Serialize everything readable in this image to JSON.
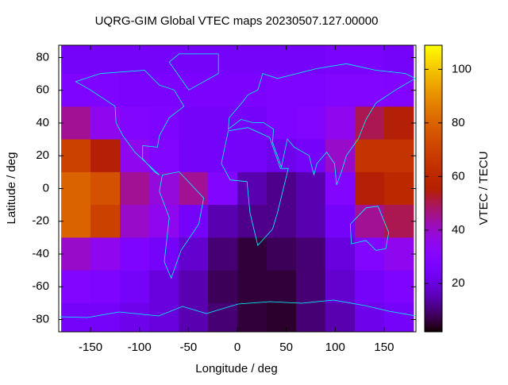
{
  "chart_data": {
    "type": "heatmap",
    "title": "UQRG-GIM Global VTEC maps 20230507.127.00000",
    "x_label": "Longitude / deg",
    "y_label": "Latitude / deg",
    "colorbar_label": "VTEC / TECU",
    "x": [
      -165,
      -135,
      -105,
      -75,
      -45,
      -15,
      15,
      45,
      75,
      105,
      135,
      165
    ],
    "y": [
      80,
      60,
      40,
      20,
      0,
      -20,
      -40,
      -60,
      -80
    ],
    "z": [
      [
        25,
        25,
        25,
        25,
        25,
        25,
        25,
        25,
        25,
        26,
        26,
        25
      ],
      [
        28,
        28,
        27,
        27,
        27,
        27,
        27,
        28,
        28,
        30,
        30,
        29
      ],
      [
        45,
        35,
        30,
        28,
        25,
        25,
        25,
        28,
        30,
        35,
        50,
        55
      ],
      [
        70,
        55,
        35,
        30,
        25,
        25,
        25,
        22,
        25,
        40,
        65,
        65
      ],
      [
        80,
        75,
        45,
        38,
        45,
        30,
        15,
        12,
        15,
        30,
        55,
        60
      ],
      [
        80,
        70,
        40,
        35,
        25,
        15,
        12,
        12,
        15,
        25,
        45,
        50
      ],
      [
        40,
        35,
        28,
        25,
        18,
        10,
        6,
        8,
        10,
        20,
        30,
        35
      ],
      [
        30,
        28,
        25,
        20,
        15,
        8,
        6,
        6,
        10,
        18,
        25,
        28
      ],
      [
        25,
        25,
        22,
        20,
        15,
        10,
        6,
        5,
        10,
        15,
        22,
        25
      ]
    ],
    "xlim": [
      -182.5,
      182.5
    ],
    "ylim": [
      -87.5,
      87.5
    ],
    "xticks": [
      -150,
      -100,
      -50,
      0,
      50,
      100,
      150
    ],
    "yticks": [
      -80,
      -60,
      -40,
      -20,
      0,
      20,
      40,
      60,
      80
    ],
    "cblim": [
      2,
      109
    ],
    "cbticks": [
      20,
      40,
      60,
      80,
      100
    ],
    "palette": "rgbformulae 7,5,15"
  }
}
